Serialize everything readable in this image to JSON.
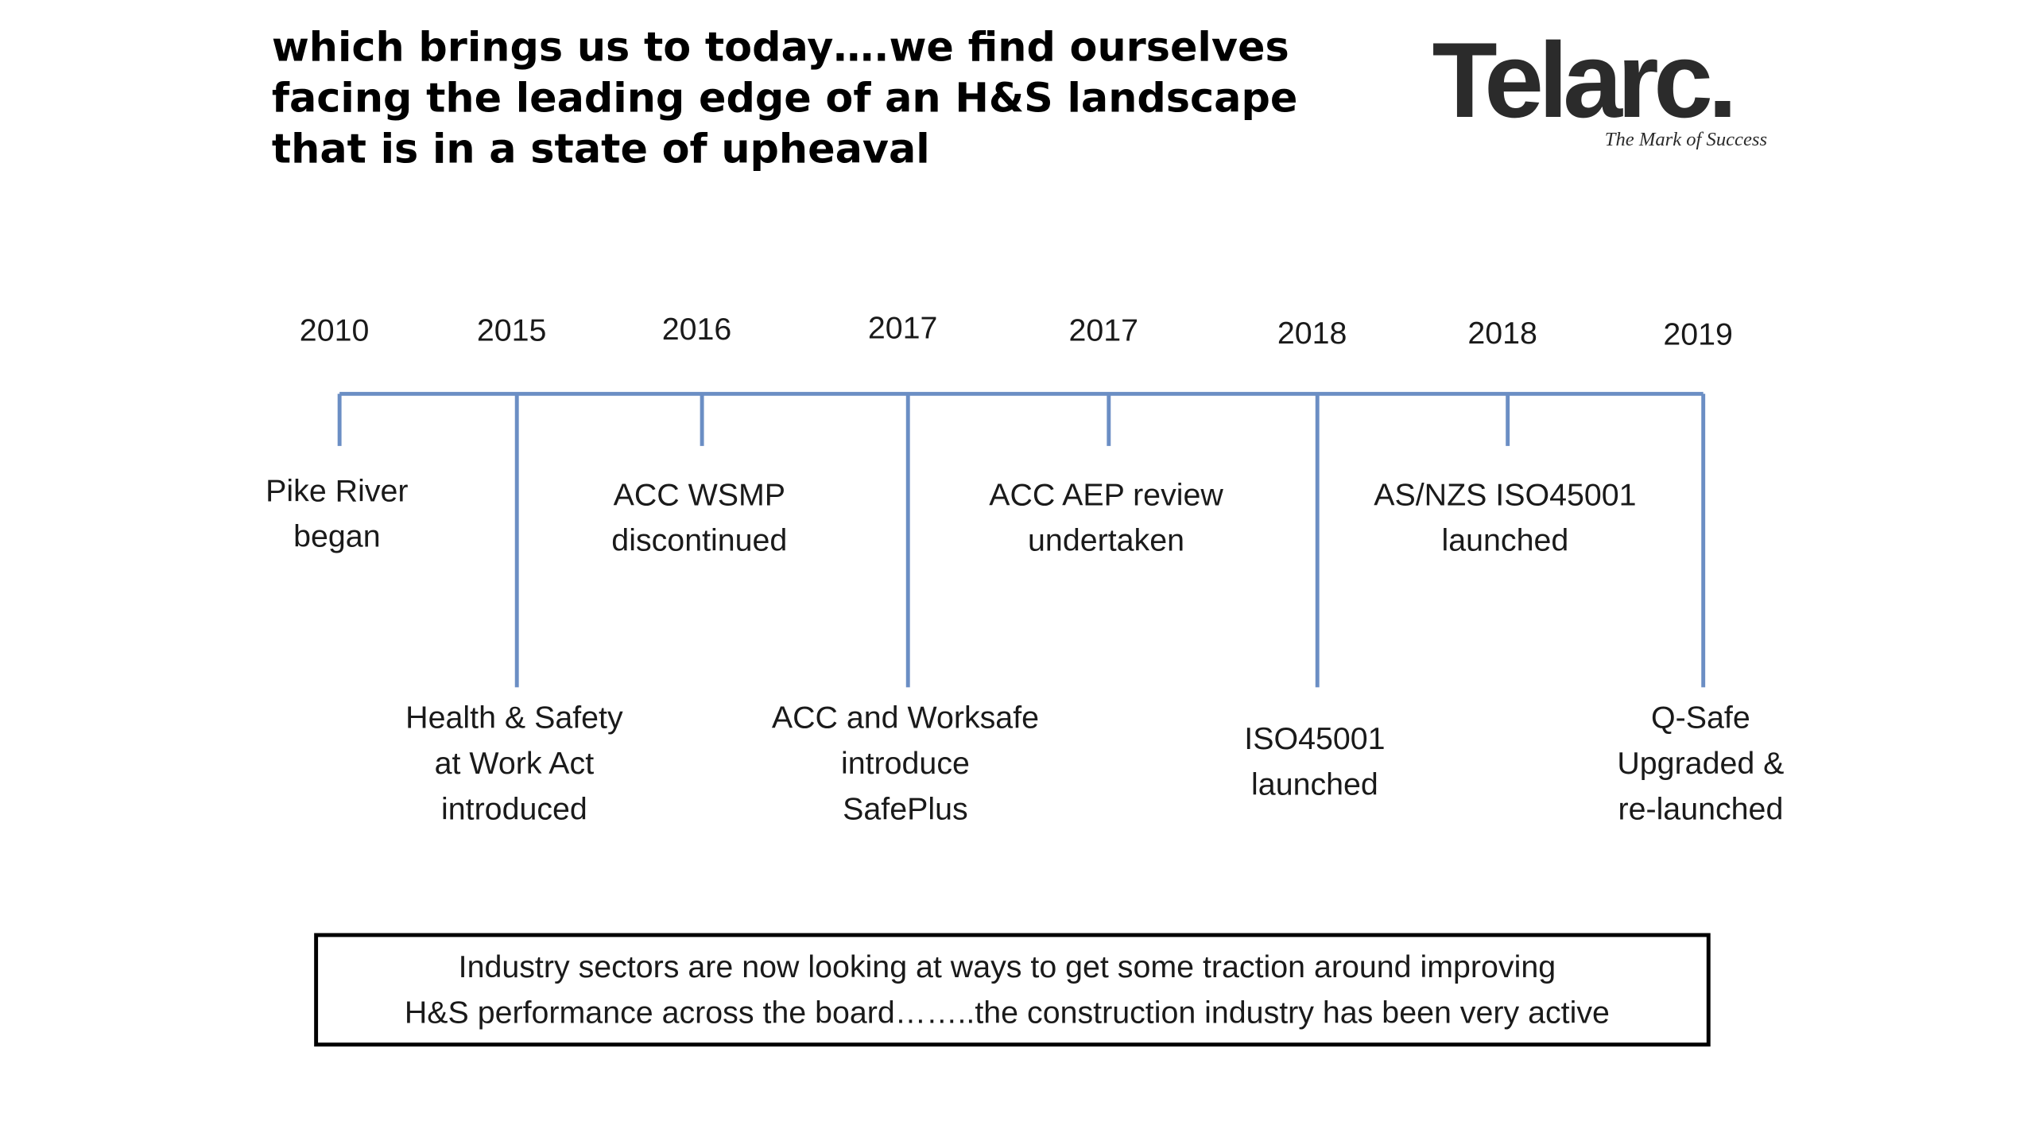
{
  "header": {
    "title_lines": [
      "which brings us to today….we find ourselves",
      "facing the leading edge of an H&S landscape",
      "that is in a state of upheaval"
    ],
    "logo": "Telarc.",
    "tagline": "The Mark of Success"
  },
  "timeline": {
    "events": [
      {
        "year": "2010",
        "label": [
          "Pike River",
          "began"
        ]
      },
      {
        "year": "2015",
        "label": [
          "Health & Safety",
          "at Work Act",
          "introduced"
        ]
      },
      {
        "year": "2016",
        "label": [
          "ACC WSMP",
          "discontinued"
        ]
      },
      {
        "year": "2017",
        "label": [
          "ACC and Worksafe",
          "introduce",
          "SafePlus"
        ]
      },
      {
        "year": "2017",
        "label": [
          "ACC AEP review",
          "undertaken"
        ]
      },
      {
        "year": "2018",
        "label": [
          "ISO45001",
          "launched"
        ]
      },
      {
        "year": "2018",
        "label": [
          "AS/NZS ISO45001",
          "launched"
        ]
      },
      {
        "year": "2019",
        "label": [
          "Q-Safe",
          "Upgraded &",
          "re-launched"
        ]
      }
    ]
  },
  "footer": {
    "lines": [
      "Industry sectors are now looking at ways to get some traction around improving",
      "H&S performance across the board……..the construction industry has been very active"
    ]
  }
}
